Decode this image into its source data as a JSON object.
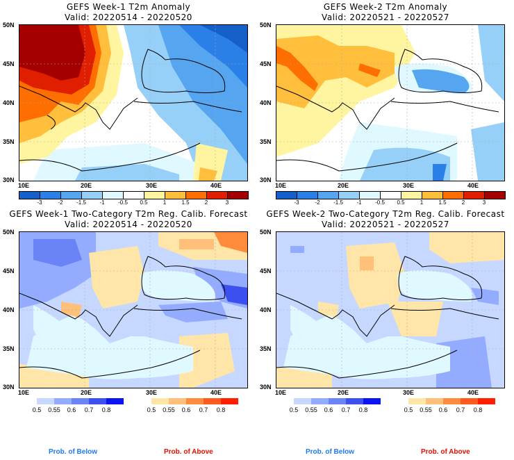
{
  "panels": [
    {
      "id": "w1-anom",
      "title": "GEFS Week-1 T2m Anomaly",
      "valid": "Valid: 20220514 - 20220520",
      "type": "anomaly"
    },
    {
      "id": "w2-anom",
      "title": "GEFS Week-2 T2m Anomaly",
      "valid": "Valid: 20220521 - 20220527",
      "type": "anomaly"
    },
    {
      "id": "w1-prob",
      "title": "GEFS Week-1 Two-Category T2m Reg. Calib. Forecast",
      "valid": "Valid: 20220514 - 20220520",
      "type": "probability"
    },
    {
      "id": "w2-prob",
      "title": "GEFS Week-2 Two-Category T2m Reg. Calib. Forecast",
      "valid": "Valid: 20220521 - 20220527",
      "type": "probability"
    }
  ],
  "axes": {
    "lat_labels": [
      "50N",
      "45N",
      "40N",
      "35N",
      "30N"
    ],
    "lon_labels": [
      "10E",
      "20E",
      "30E",
      "40E"
    ]
  },
  "anomaly_colorbar": {
    "colors": [
      "#1560c8",
      "#2b80e8",
      "#55a5f0",
      "#96d0f8",
      "#e0f8ff",
      "#ffffff",
      "#fff5a0",
      "#ffbe3c",
      "#ff6e00",
      "#e01e00",
      "#a50000"
    ],
    "labels": [
      "-3",
      "-2",
      "-1.5",
      "-1",
      "-0.5",
      "0.5",
      "1",
      "1.5",
      "2",
      "3"
    ]
  },
  "prob_below_colorbar": {
    "colors": [
      "#c6d8ff",
      "#94acff",
      "#6a84f5",
      "#3c50f0",
      "#0a14f0"
    ],
    "labels": [
      "0.5",
      "0.55",
      "0.6",
      "0.7",
      "0.8"
    ],
    "caption": "Prob. of Below",
    "caption_color": "#1e78f0"
  },
  "prob_above_colorbar": {
    "colors": [
      "#ffe6a8",
      "#ffc07a",
      "#ff8c3c",
      "#ff5a1e",
      "#ff1e00"
    ],
    "labels": [
      "0.5",
      "0.55",
      "0.6",
      "0.7",
      "0.8"
    ],
    "caption": "Prob. of Above",
    "caption_color": "#e01000"
  }
}
